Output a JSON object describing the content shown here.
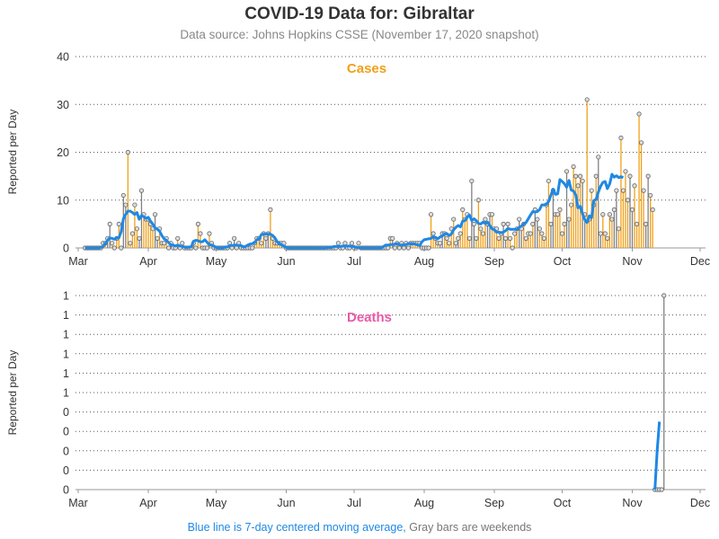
{
  "title": "COVID-19 Data for: Gibraltar",
  "subtitle": "Data source: Johns Hopkins CSSE (November 17, 2020 snapshot)",
  "footnote": {
    "blue_part": "Blue line is 7-day centered moving average,",
    "gray_part": "Gray bars are weekends"
  },
  "colors": {
    "cases_accent": "#f0a018",
    "deaths_accent": "#e85aa8",
    "moving_average": "#1e88e5",
    "weekend_bar": "#808080",
    "grid": "#555555",
    "text": "#333333"
  },
  "chart_data": [
    {
      "type": "bar",
      "title": "Cases",
      "ylabel": "Reported per Day",
      "xlabel": "",
      "x_start_date": "2020-03-01",
      "x_tick_labels": [
        "Mar",
        "Apr",
        "May",
        "Jun",
        "Jul",
        "Aug",
        "Sep",
        "Oct",
        "Nov",
        "Dec"
      ],
      "y_tick_labels": [
        "0",
        "10",
        "20",
        "30",
        "40"
      ],
      "ylim": [
        0,
        40
      ],
      "grid": "horizontal dotted",
      "first_data_date": "2020-03-04",
      "values": [
        0,
        0,
        0,
        0,
        0,
        0,
        0,
        0,
        1,
        1,
        2,
        5,
        1,
        0,
        2,
        5,
        0,
        11,
        9,
        20,
        1,
        3,
        9,
        4,
        2,
        12,
        7,
        6,
        6,
        5,
        4,
        7,
        2,
        4,
        1,
        1,
        2,
        0,
        1,
        0,
        0,
        2,
        0,
        1,
        0,
        0,
        0,
        0,
        1,
        0,
        5,
        3,
        0,
        0,
        0,
        3,
        1,
        0,
        0,
        0,
        0,
        0,
        0,
        0,
        1,
        0,
        2,
        0,
        1,
        0,
        0,
        0,
        0,
        0,
        0,
        1,
        2,
        2,
        1,
        3,
        2,
        3,
        8,
        2,
        1,
        1,
        1,
        1,
        1,
        0,
        0,
        0,
        0,
        0,
        0,
        0,
        0,
        0,
        0,
        0,
        0,
        0,
        0,
        0,
        0,
        0,
        0,
        0,
        0,
        0,
        0,
        0,
        1,
        0,
        0,
        1,
        0,
        0,
        1,
        0,
        0,
        1,
        0,
        0,
        0,
        0,
        0,
        0,
        0,
        0,
        0,
        0,
        0,
        0,
        0,
        2,
        2,
        0,
        1,
        0,
        1,
        0,
        1,
        0,
        1,
        1,
        1,
        1,
        1,
        0,
        0,
        0,
        0,
        7,
        3,
        2,
        1,
        1,
        3,
        3,
        2,
        1,
        4,
        6,
        1,
        2,
        3,
        8,
        6,
        7,
        2,
        14,
        5,
        2,
        10,
        4,
        3,
        6,
        5,
        7,
        7,
        4,
        4,
        2,
        3,
        5,
        2,
        5,
        2,
        0,
        3,
        4,
        6,
        4,
        5,
        2,
        3,
        3,
        5,
        8,
        6,
        4,
        3,
        2,
        9,
        14,
        5,
        12,
        7,
        7,
        8,
        3,
        5,
        16,
        6,
        9,
        17,
        15,
        13,
        15,
        14,
        7,
        31,
        6,
        12,
        9,
        15,
        19,
        3,
        7,
        3,
        2,
        7,
        6,
        8,
        12,
        4,
        23,
        12,
        16,
        10,
        15,
        8,
        13,
        5,
        28,
        22,
        12,
        5,
        15,
        11,
        8
      ],
      "moving_average": [
        0,
        0,
        0,
        0,
        0,
        0,
        0,
        0.1,
        0.3,
        0.9,
        1.6,
        2.1,
        2,
        1.8,
        2.1,
        2.1,
        3.4,
        6.1,
        7,
        7.7,
        7.7,
        7.4,
        7,
        7.4,
        6,
        6.8,
        6.5,
        6.2,
        6.4,
        5.6,
        5,
        4.2,
        3.9,
        3.5,
        2.6,
        1.9,
        1.6,
        1.1,
        0.6,
        0.6,
        0.4,
        0.6,
        0.4,
        0.4,
        0.2,
        0.1,
        0.2,
        0.2,
        1.4,
        1.6,
        1.5,
        1.3,
        1.3,
        1.7,
        1.2,
        0.6,
        0.6,
        0.4,
        0.1,
        0,
        0,
        0,
        0.2,
        0.2,
        0.5,
        0.5,
        0.6,
        0.6,
        0.5,
        0.5,
        0.2,
        0.3,
        0.6,
        0.8,
        0.9,
        1.1,
        1.7,
        1.9,
        2.8,
        2.9,
        2.9,
        2.9,
        2.9,
        2.6,
        2.1,
        1.3,
        0.9,
        0.6,
        0.4,
        0.1,
        0,
        0,
        0,
        0,
        0,
        0,
        0,
        0,
        0,
        0,
        0,
        0,
        0,
        0,
        0,
        0,
        0,
        0.1,
        0.1,
        0.1,
        0.3,
        0.3,
        0.3,
        0.3,
        0.4,
        0.4,
        0.4,
        0.4,
        0.3,
        0.3,
        0.1,
        0.1,
        0,
        0,
        0,
        0,
        0,
        0,
        0,
        0,
        0,
        0,
        0.3,
        0.6,
        0.6,
        0.7,
        0.7,
        0.8,
        0.9,
        0.6,
        0.6,
        0.6,
        0.7,
        0.9,
        0.9,
        0.9,
        0.8,
        0.6,
        0.5,
        1.3,
        1.7,
        1.8,
        1.9,
        2,
        2.4,
        2.1,
        1.9,
        2.3,
        2.5,
        2.9,
        3,
        2.6,
        2.9,
        3.8,
        4.3,
        4.7,
        4.4,
        5.6,
        5.7,
        6.4,
        6.9,
        5.7,
        6.1,
        5.7,
        5.1,
        5,
        5.4,
        5.1,
        5.4,
        4.7,
        4,
        3.8,
        3.3,
        3.3,
        3.2,
        3.3,
        3.6,
        4.1,
        3.9,
        3.9,
        3.9,
        3.9,
        4.3,
        4.6,
        5,
        5.3,
        6.1,
        6.9,
        7.6,
        7.5,
        7.6,
        8,
        9,
        9,
        9.1,
        9.7,
        11,
        12.3,
        11.2,
        11.3,
        14.3,
        13.9,
        13.4,
        12.7,
        14.1,
        12.1,
        11.9,
        11.1,
        8.4,
        8.7,
        7.1,
        5.9,
        5.3,
        6.7,
        6.3,
        9.9,
        10.2,
        11.7,
        12.9,
        13.7,
        13.9,
        12.4,
        13.4,
        15.4,
        14.8,
        15.1,
        14.7,
        14.9,
        14.7
      ],
      "weekend_bar_color": "gray",
      "line_color": "blue"
    },
    {
      "type": "bar",
      "title": "Deaths",
      "ylabel": "Reported per Day",
      "xlabel": "",
      "x_start_date": "2020-03-01",
      "x_tick_labels": [
        "Mar",
        "Apr",
        "May",
        "Jun",
        "Jul",
        "Aug",
        "Sep",
        "Oct",
        "Nov",
        "Dec"
      ],
      "y_tick_labels": [
        "0",
        "0",
        "0",
        "0",
        "0",
        "1",
        "1",
        "1",
        "1",
        "1",
        "1"
      ],
      "ylim": [
        0,
        1
      ],
      "grid": "horizontal dotted",
      "first_data_date": "2020-11-11",
      "values": [
        0,
        0,
        0,
        0,
        1
      ],
      "moving_average": [
        0,
        0.2,
        0.35
      ],
      "weekend_bar_color": "gray",
      "line_color": "blue"
    }
  ]
}
